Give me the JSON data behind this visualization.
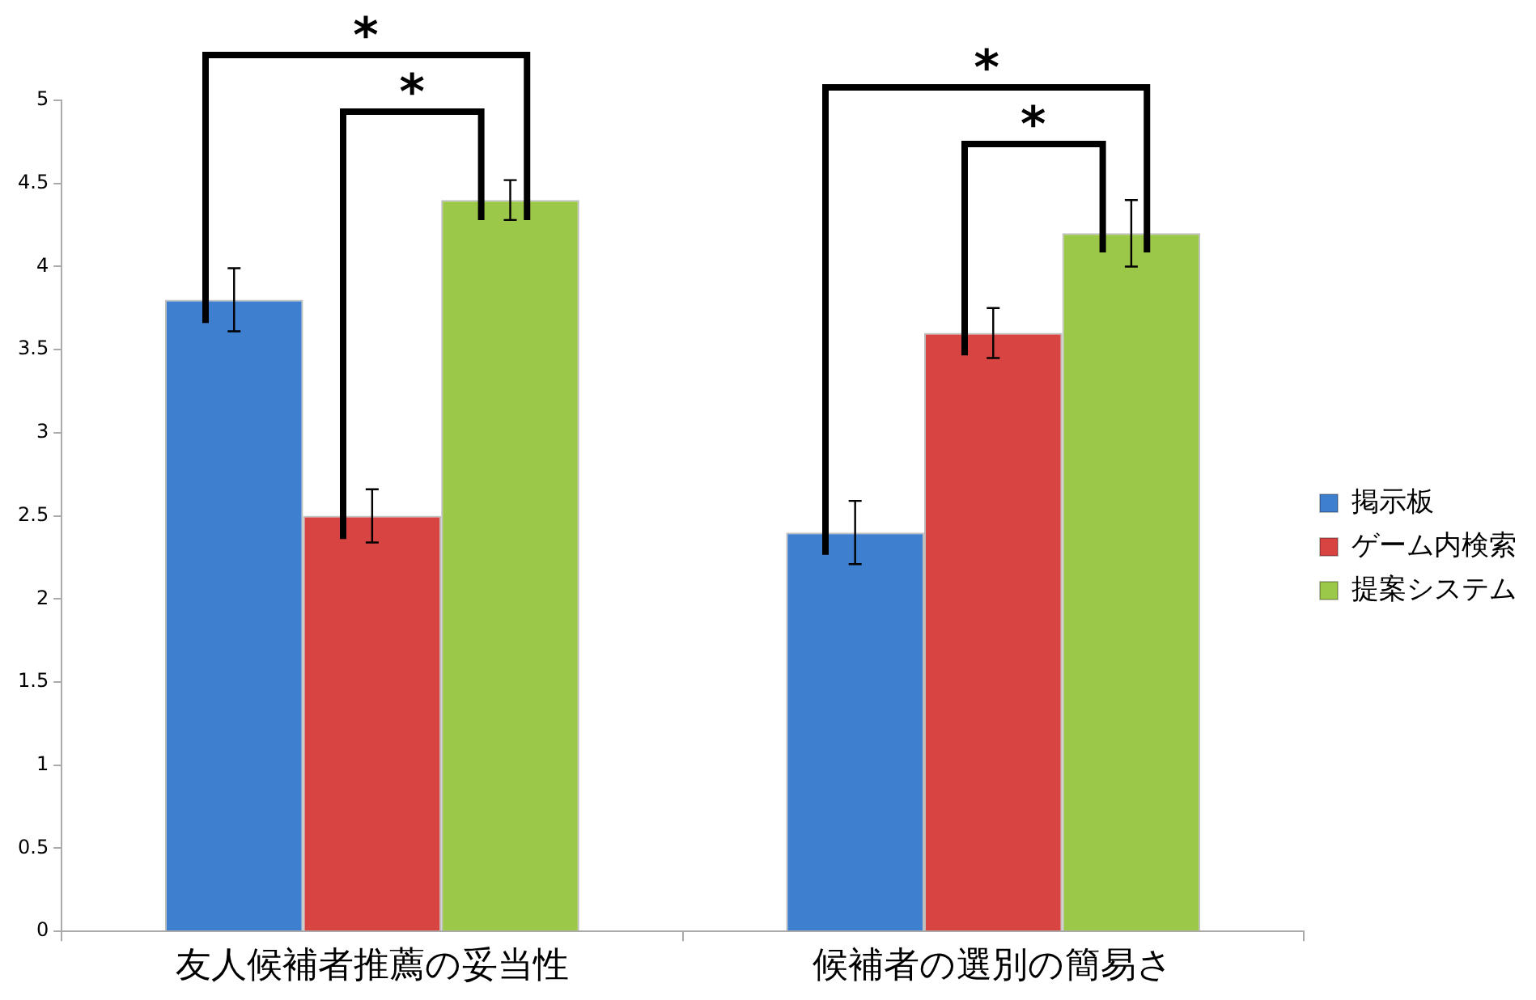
{
  "chart_data": {
    "type": "bar",
    "categories": [
      "友人候補者推薦の妥当性",
      "候補者の選別の簡易さ"
    ],
    "series": [
      {
        "name": "掲示板",
        "color": "#3f7fd0",
        "values": [
          3.8,
          2.4
        ],
        "errors": [
          0.19,
          0.19
        ]
      },
      {
        "name": "ゲーム内検索",
        "color": "#d84442",
        "values": [
          2.5,
          3.6
        ],
        "errors": [
          0.16,
          0.15
        ]
      },
      {
        "name": "提案システム",
        "color": "#9cc84a",
        "values": [
          4.4,
          4.2
        ],
        "errors": [
          0.12,
          0.2
        ]
      }
    ],
    "ylim": [
      0,
      5
    ],
    "yticks": [
      0,
      0.5,
      1,
      1.5,
      2,
      2.5,
      3,
      3.5,
      4,
      4.5,
      5
    ],
    "grid": false,
    "legend": "right",
    "annotations": [
      "*",
      "*",
      "*",
      "*"
    ]
  }
}
